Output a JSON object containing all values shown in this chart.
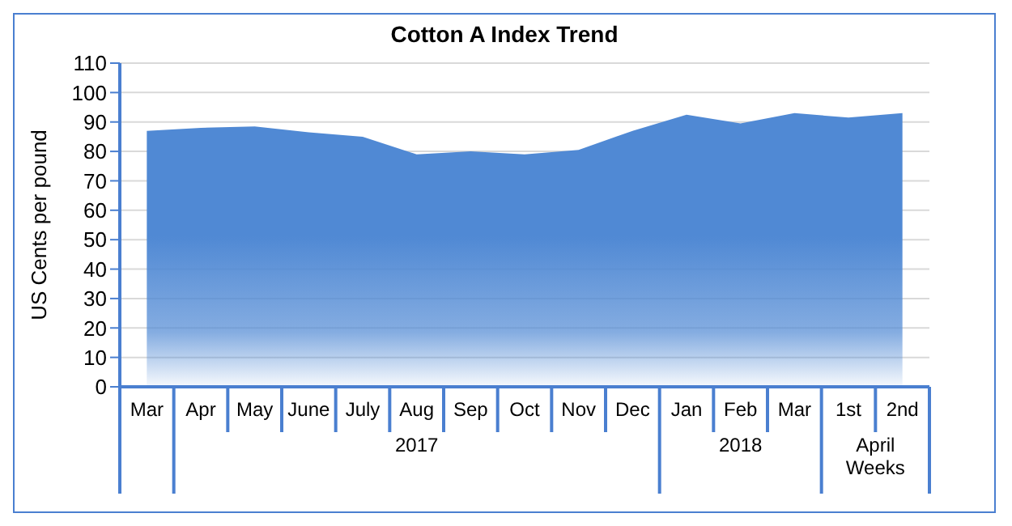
{
  "chart_data": {
    "type": "area",
    "title": "Cotton A Index Trend",
    "ylabel": "US Cents per pound",
    "categories": [
      "Mar",
      "Apr",
      "May",
      "June",
      "July",
      "Aug",
      "Sep",
      "Oct",
      "Nov",
      "Dec",
      "Jan",
      "Feb",
      "Mar",
      "1st",
      "2nd"
    ],
    "values": [
      87,
      88,
      88.5,
      86.5,
      85,
      79,
      80,
      79,
      80.5,
      87,
      92.5,
      89.5,
      93,
      91.5,
      93
    ],
    "color": "#5089d4",
    "ylim": [
      0,
      110
    ],
    "yticks": [
      0,
      10,
      20,
      30,
      40,
      50,
      60,
      70,
      80,
      90,
      100,
      110
    ],
    "grid": "y",
    "annotations": [
      "2017",
      "2018",
      "April Weeks"
    ]
  }
}
